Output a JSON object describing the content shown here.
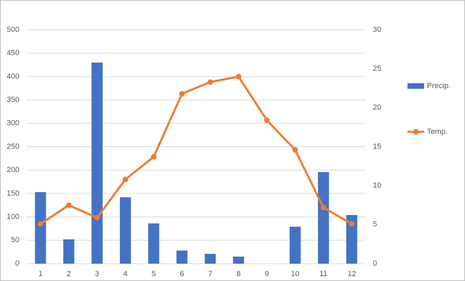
{
  "chart_data": {
    "type": "combo",
    "categories": [
      "1",
      "2",
      "3",
      "4",
      "5",
      "6",
      "7",
      "8",
      "9",
      "10",
      "11",
      "12"
    ],
    "series": [
      {
        "name": "Precip.",
        "type": "bar",
        "color": "#4472c4",
        "values": [
          153,
          52,
          430,
          142,
          86,
          28,
          21,
          15,
          0,
          79,
          196,
          104
        ]
      },
      {
        "name": "Temp.",
        "type": "line",
        "axis": "y2",
        "color": "#ed7d31",
        "values": [
          5.1,
          7.5,
          5.9,
          10.8,
          13.7,
          21.8,
          23.3,
          24.0,
          18.4,
          14.6,
          7.2,
          5.1
        ]
      }
    ],
    "ylim": [
      0,
      500
    ],
    "yticks": [
      0,
      50,
      100,
      150,
      200,
      250,
      300,
      350,
      400,
      450,
      500
    ],
    "y2lim": [
      0,
      30
    ],
    "y2ticks": [
      0,
      5,
      10,
      15,
      20,
      25,
      30
    ],
    "grid": true,
    "legend": "right"
  }
}
